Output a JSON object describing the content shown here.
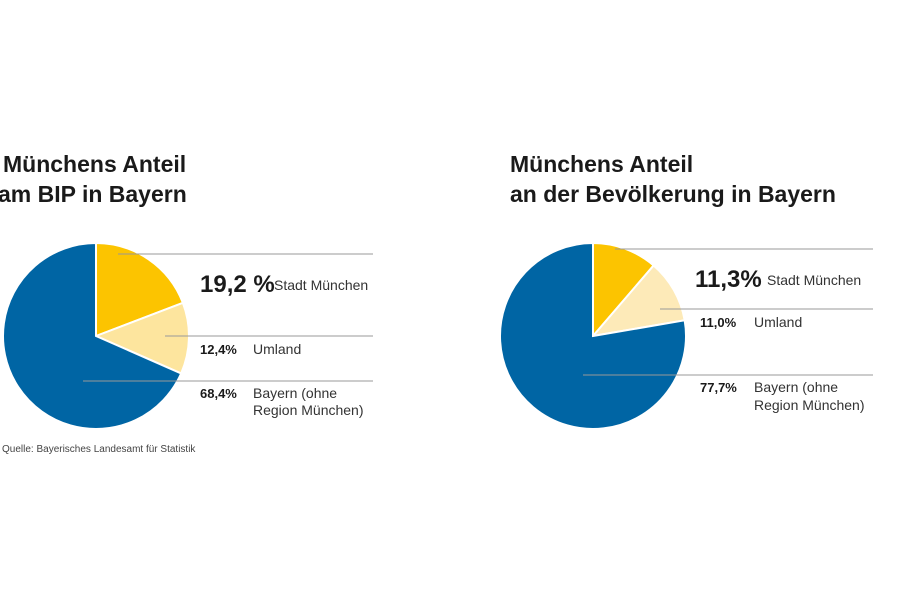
{
  "chart_data": [
    {
      "type": "pie",
      "title": [
        "Münchens Anteil",
        "am BIP in Bayern"
      ],
      "categories": [
        "Stadt München",
        "Umland",
        "Bayern (ohne Region München)"
      ],
      "values": [
        19.2,
        12.4,
        68.4
      ],
      "labels": [
        "19,2 %",
        "12,4%",
        "68,4%"
      ],
      "category_lines": [
        [
          "Stadt München"
        ],
        [
          "Umland"
        ],
        [
          "Bayern (ohne",
          "Region München)"
        ]
      ],
      "colors": [
        "#fcc400",
        "#fde59e",
        "#0065a4"
      ]
    },
    {
      "type": "pie",
      "title": [
        "Münchens Anteil",
        "an der Bevölkerung in Bayern"
      ],
      "categories": [
        "Stadt München",
        "Umland",
        "Bayern (ohne Region München)"
      ],
      "values": [
        11.3,
        11.0,
        77.7
      ],
      "labels": [
        "11,3%",
        "11,0%",
        "77,7%"
      ],
      "category_lines": [
        [
          "Stadt München"
        ],
        [
          "Umland"
        ],
        [
          "Bayern (ohne",
          "Region München)"
        ]
      ],
      "colors": [
        "#fcc400",
        "#fdeab8",
        "#0065a4"
      ]
    }
  ],
  "source": "Quelle: Bayerisches Landesamt für Statistik"
}
